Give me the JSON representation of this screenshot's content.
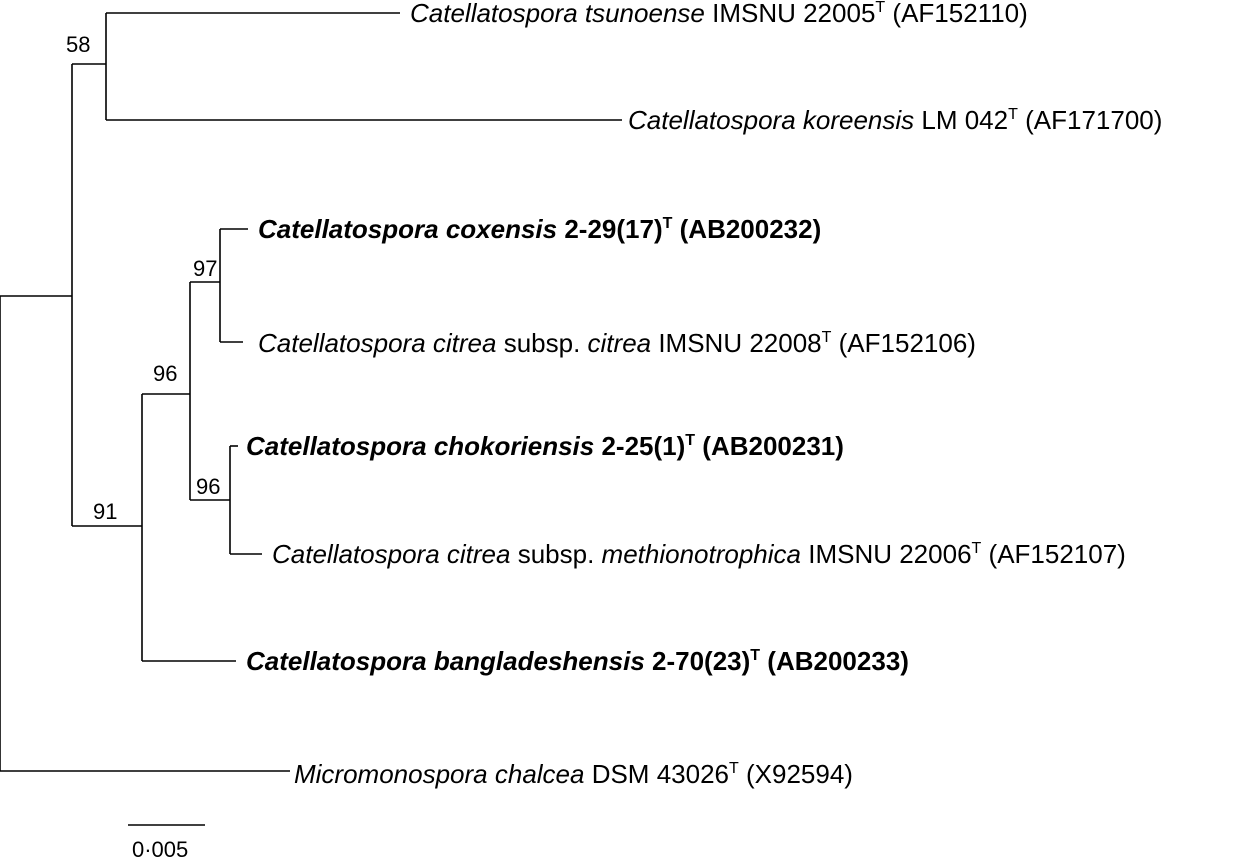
{
  "taxa": [
    {
      "id": "tsunoense",
      "bold": false,
      "parts": [
        {
          "t": "Catellatospora tsunoense",
          "i": true
        },
        {
          "t": " IMSNU 22005"
        },
        {
          "t": "T",
          "sup": true
        },
        {
          "t": " (AF152110)"
        }
      ]
    },
    {
      "id": "koreensis",
      "bold": false,
      "parts": [
        {
          "t": "Catellatospora koreensis",
          "i": true
        },
        {
          "t": " LM 042"
        },
        {
          "t": "T",
          "sup": true
        },
        {
          "t": " (AF171700)"
        }
      ]
    },
    {
      "id": "coxensis",
      "bold": true,
      "parts": [
        {
          "t": "Catellatospora coxensis",
          "i": true
        },
        {
          "t": " 2-29(17)"
        },
        {
          "t": "T",
          "sup": true
        },
        {
          "t": " (AB200232)"
        }
      ]
    },
    {
      "id": "citrea-citrea",
      "bold": false,
      "parts": [
        {
          "t": "Catellatospora citrea",
          "i": true
        },
        {
          "t": " subsp. "
        },
        {
          "t": "citrea",
          "i": true
        },
        {
          "t": " IMSNU 22008"
        },
        {
          "t": "T",
          "sup": true
        },
        {
          "t": " (AF152106)"
        }
      ]
    },
    {
      "id": "chokoriensis",
      "bold": true,
      "parts": [
        {
          "t": "Catellatospora chokoriensis",
          "i": true
        },
        {
          "t": " 2-25(1)"
        },
        {
          "t": "T",
          "sup": true
        },
        {
          "t": " (AB200231)"
        }
      ]
    },
    {
      "id": "citrea-methionotrophica",
      "bold": false,
      "parts": [
        {
          "t": "Catellatospora citrea",
          "i": true
        },
        {
          "t": " subsp. "
        },
        {
          "t": "methionotrophica",
          "i": true
        },
        {
          "t": " IMSNU 22006"
        },
        {
          "t": "T",
          "sup": true
        },
        {
          "t": " (AF152107)"
        }
      ]
    },
    {
      "id": "bangladeshensis",
      "bold": true,
      "parts": [
        {
          "t": "Catellatospora bangladeshensis",
          "i": true
        },
        {
          "t": " 2-70(23)"
        },
        {
          "t": "T",
          "sup": true
        },
        {
          "t": " (AB200233)"
        }
      ]
    },
    {
      "id": "micromonospora",
      "bold": false,
      "parts": [
        {
          "t": "Micromonospora chalcea",
          "i": true
        },
        {
          "t": " DSM 43026"
        },
        {
          "t": "T",
          "sup": true
        },
        {
          "t": " (X92594)"
        }
      ]
    }
  ],
  "bootstrap": {
    "tsunoense_koreensis": "58",
    "coxensis_citrea": "97",
    "inner_clade": "96",
    "chokoriensis_methionotrophica": "96",
    "catellatospora_excl_top": "91"
  },
  "scale_bar": {
    "label": "0·005"
  }
}
